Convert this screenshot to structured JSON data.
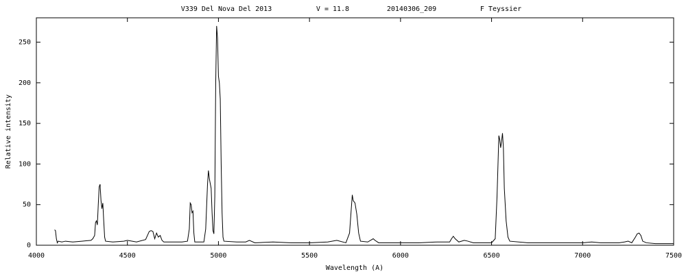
{
  "chart_data": {
    "type": "line",
    "title_parts": [
      "V339 Del Nova Del 2013",
      "V = 11.8",
      "20140306_209",
      "F Teyssier"
    ],
    "x_label": "Wavelength (A)",
    "y_label": "Relative intensity",
    "xlim": [
      4000,
      7500
    ],
    "xticks": [
      4000,
      4500,
      5000,
      5500,
      6000,
      6500,
      7000,
      7500
    ],
    "ylim": [
      0,
      280
    ],
    "yticks": [
      0,
      50,
      100,
      150,
      200,
      250
    ],
    "grid": false,
    "series": [
      {
        "color": "#000000",
        "x": [
          4100,
          4105,
          4110,
          4115,
          4120,
          4140,
          4160,
          4200,
          4250,
          4300,
          4310,
          4320,
          4325,
          4330,
          4335,
          4340,
          4345,
          4350,
          4355,
          4360,
          4365,
          4370,
          4375,
          4380,
          4420,
          4480,
          4500,
          4550,
          4600,
          4610,
          4620,
          4630,
          4640,
          4650,
          4660,
          4670,
          4680,
          4690,
          4700,
          4800,
          4830,
          4840,
          4845,
          4850,
          4855,
          4860,
          4865,
          4870,
          4920,
          4930,
          4940,
          4945,
          4950,
          4960,
          4965,
          4970,
          4975,
          4980,
          4985,
          4990,
          4995,
          5000,
          5005,
          5010,
          5015,
          5020,
          5025,
          5030,
          5100,
          5150,
          5170,
          5200,
          5300,
          5400,
          5500,
          5600,
          5650,
          5700,
          5720,
          5735,
          5740,
          5750,
          5760,
          5770,
          5780,
          5820,
          5850,
          5860,
          5880,
          6000,
          6100,
          6200,
          6270,
          6280,
          6290,
          6300,
          6320,
          6350,
          6370,
          6400,
          6500,
          6520,
          6530,
          6540,
          6545,
          6550,
          6555,
          6560,
          6565,
          6570,
          6580,
          6590,
          6600,
          6700,
          6800,
          6900,
          7000,
          7050,
          7100,
          7200,
          7230,
          7250,
          7270,
          7290,
          7300,
          7310,
          7320,
          7330,
          7350,
          7400,
          7450,
          7500
        ],
        "values": [
          19,
          18,
          8,
          3,
          5,
          4,
          5,
          4,
          5,
          6,
          8,
          12,
          28,
          30,
          25,
          50,
          72,
          75,
          55,
          45,
          52,
          30,
          10,
          5,
          4,
          5,
          6,
          4,
          7,
          12,
          17,
          18,
          17,
          8,
          15,
          10,
          12,
          6,
          4,
          4,
          5,
          20,
          52,
          50,
          40,
          42,
          15,
          4,
          4,
          20,
          75,
          92,
          82,
          70,
          40,
          18,
          14,
          60,
          200,
          270,
          255,
          208,
          200,
          180,
          100,
          40,
          10,
          5,
          4,
          4,
          6,
          3,
          4,
          3,
          3,
          4,
          6,
          3,
          15,
          62,
          55,
          52,
          38,
          15,
          5,
          4,
          8,
          6,
          3,
          3,
          3,
          4,
          4,
          8,
          11,
          8,
          4,
          6,
          5,
          3,
          3,
          8,
          60,
          135,
          130,
          120,
          128,
          138,
          120,
          70,
          30,
          10,
          5,
          3,
          3,
          3,
          3,
          4,
          3,
          3,
          4,
          5,
          3,
          10,
          14,
          15,
          12,
          5,
          3,
          2,
          2,
          2
        ]
      }
    ]
  }
}
